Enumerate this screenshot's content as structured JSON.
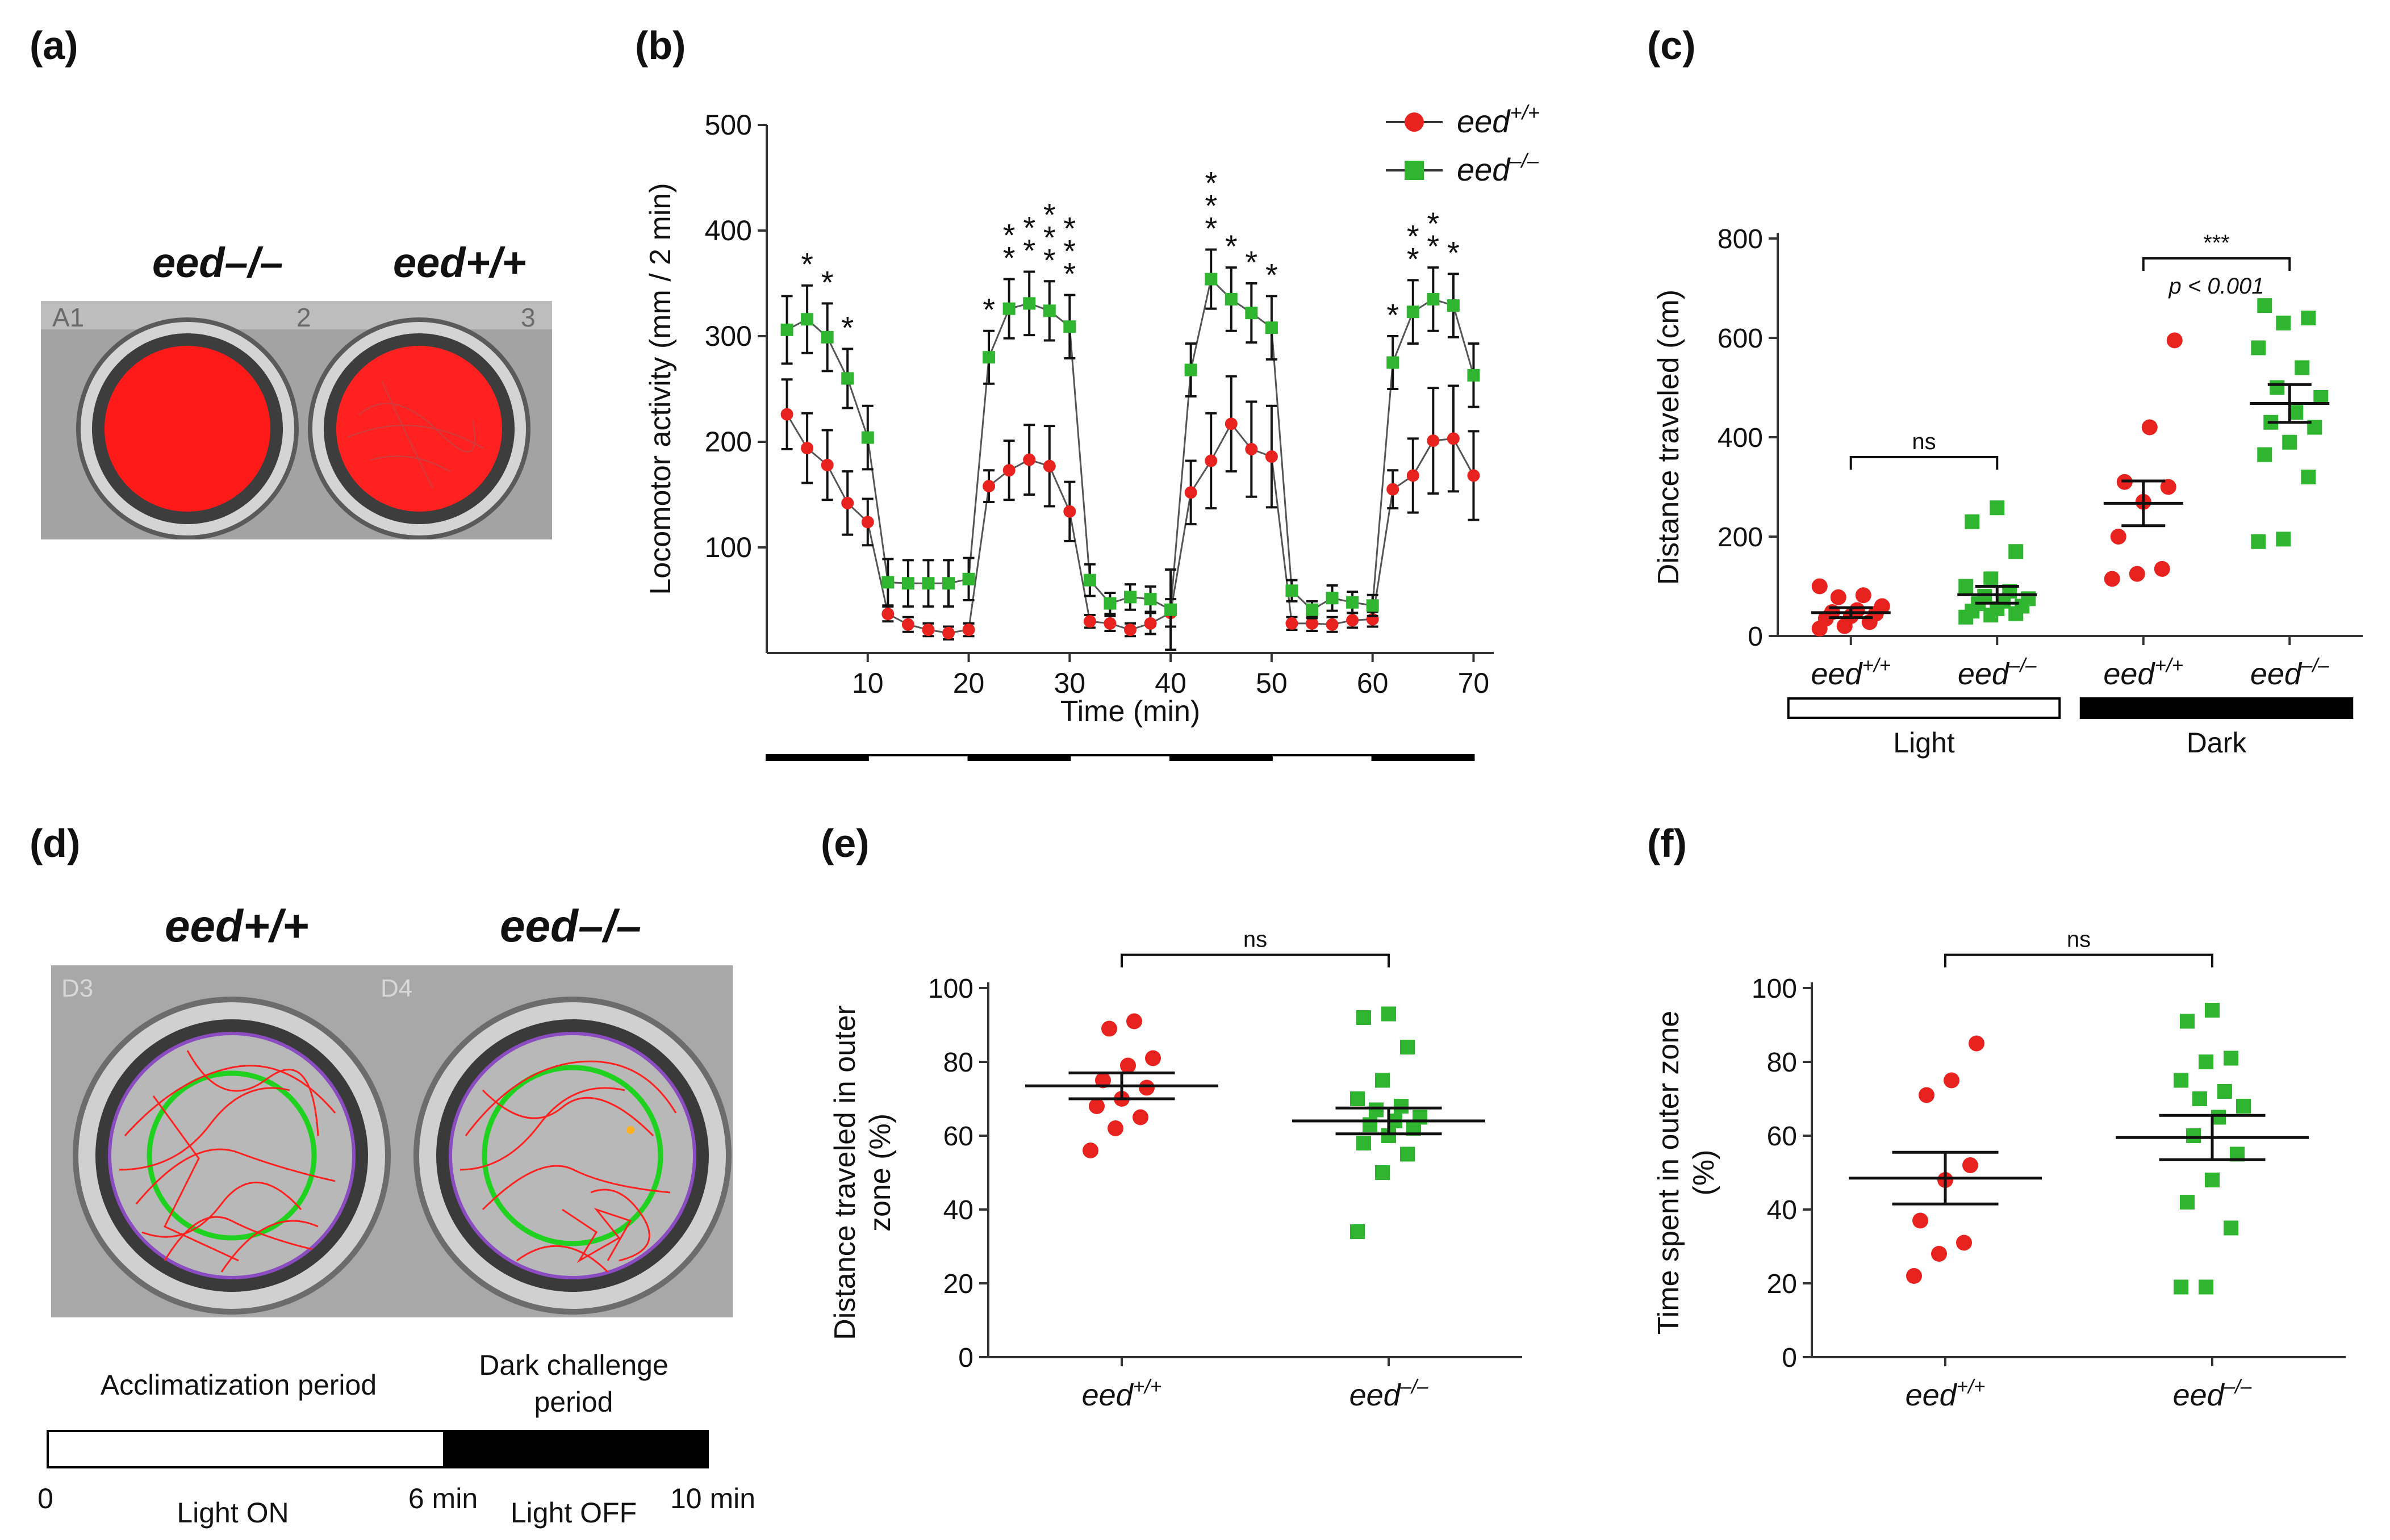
{
  "panels": {
    "a": {
      "label": "(a)",
      "genotype_left": "eed–/–",
      "genotype_right": "eed+/+",
      "well_marks": [
        "A1",
        "2",
        "3"
      ]
    },
    "b": {
      "label": "(b)"
    },
    "c": {
      "label": "(c)"
    },
    "d": {
      "label": "(d)",
      "genotype_left": "eed+/+",
      "genotype_right": "eed–/–",
      "well_marks": [
        "D3",
        "D4"
      ],
      "period_acclimatization": "Acclimatization period",
      "period_dark_line1": "Dark challenge",
      "period_dark_line2": "period",
      "tick_0": "0",
      "tick_6": "6 min",
      "tick_10": "10 min",
      "light_on": "Light ON",
      "light_off": "Light OFF"
    },
    "e": {
      "label": "(e)"
    },
    "f": {
      "label": "(f)"
    }
  },
  "chart_data": [
    {
      "id": "b",
      "type": "line",
      "xlabel": "Time (min)",
      "ylabel": "Locomotor activity (mm / 2 min)",
      "xlim": [
        0,
        72
      ],
      "ylim": [
        0,
        500
      ],
      "xticks": [
        10,
        20,
        30,
        40,
        50,
        60,
        70
      ],
      "yticks": [
        100,
        200,
        300,
        400,
        500
      ],
      "x": [
        2,
        4,
        6,
        8,
        10,
        12,
        14,
        16,
        18,
        20,
        22,
        24,
        26,
        28,
        30,
        32,
        34,
        36,
        38,
        40,
        42,
        44,
        46,
        48,
        50,
        52,
        54,
        56,
        58,
        60,
        62,
        64,
        66,
        68,
        70
      ],
      "series": [
        {
          "name": "eed+/+",
          "color": "#e8231f",
          "marker": "circle",
          "values": [
            226,
            194,
            178,
            142,
            124,
            37,
            27,
            22,
            19,
            22,
            158,
            173,
            183,
            177,
            134,
            30,
            28,
            22,
            28,
            38,
            152,
            182,
            217,
            193,
            186,
            28,
            28,
            27,
            31,
            32,
            155,
            168,
            201,
            203,
            168
          ],
          "errors": [
            33,
            33,
            33,
            30,
            22,
            7,
            7,
            6,
            6,
            6,
            15,
            28,
            33,
            38,
            28,
            6,
            7,
            6,
            10,
            13,
            30,
            45,
            45,
            45,
            48,
            6,
            7,
            7,
            7,
            7,
            18,
            35,
            50,
            50,
            42
          ]
        },
        {
          "name": "eed–/–",
          "color": "#2fb52f",
          "marker": "square",
          "values": [
            306,
            316,
            299,
            260,
            204,
            67,
            66,
            66,
            66,
            70,
            280,
            326,
            331,
            324,
            309,
            69,
            47,
            53,
            51,
            41,
            268,
            354,
            335,
            322,
            308,
            59,
            41,
            52,
            48,
            45,
            275,
            323,
            335,
            329,
            263
          ],
          "errors": [
            32,
            32,
            32,
            28,
            30,
            22,
            22,
            22,
            22,
            20,
            25,
            28,
            30,
            28,
            30,
            15,
            10,
            12,
            12,
            38,
            25,
            28,
            30,
            28,
            30,
            10,
            8,
            12,
            10,
            10,
            25,
            30,
            30,
            30,
            30
          ]
        }
      ],
      "significance": [
        {
          "x": 4,
          "stars": 1
        },
        {
          "x": 6,
          "stars": 1
        },
        {
          "x": 8,
          "stars": 1
        },
        {
          "x": 22,
          "stars": 1
        },
        {
          "x": 24,
          "stars": 2
        },
        {
          "x": 26,
          "stars": 2
        },
        {
          "x": 28,
          "stars": 3
        },
        {
          "x": 30,
          "stars": 3
        },
        {
          "x": 44,
          "stars": 3
        },
        {
          "x": 46,
          "stars": 1
        },
        {
          "x": 48,
          "stars": 1
        },
        {
          "x": 50,
          "stars": 1
        },
        {
          "x": 62,
          "stars": 1
        },
        {
          "x": 64,
          "stars": 2
        },
        {
          "x": 66,
          "stars": 2
        },
        {
          "x": 68,
          "stars": 1
        }
      ],
      "light_dark_bar": [
        {
          "from": 0,
          "to": 10,
          "state": "dark"
        },
        {
          "from": 10,
          "to": 20,
          "state": "light"
        },
        {
          "from": 20,
          "to": 30,
          "state": "dark"
        },
        {
          "from": 30,
          "to": 40,
          "state": "light"
        },
        {
          "from": 40,
          "to": 50,
          "state": "dark"
        },
        {
          "from": 50,
          "to": 60,
          "state": "light"
        },
        {
          "from": 60,
          "to": 70,
          "state": "dark"
        }
      ],
      "legend": [
        "eed+/+",
        "eed–/–"
      ],
      "legend_position": "top-right",
      "star": "*"
    },
    {
      "id": "c",
      "type": "scatter",
      "ylabel": "Distance traveled (cm)",
      "ylim": [
        0,
        800
      ],
      "yticks": [
        0,
        200,
        400,
        600,
        800
      ],
      "categories": [
        "eed+/+",
        "eed–/–",
        "eed+/+",
        "eed–/–"
      ],
      "groups": [
        {
          "name": "eed+/+",
          "condition": "Light",
          "color": "#e8231f",
          "marker": "circle",
          "mean": 47,
          "sem": 10,
          "values": [
            15,
            20,
            28,
            35,
            40,
            45,
            48,
            52,
            60,
            78,
            82,
            100
          ]
        },
        {
          "name": "eed–/–",
          "condition": "Light",
          "color": "#2fb52f",
          "marker": "square",
          "mean": 83,
          "sem": 17,
          "values": [
            38,
            42,
            45,
            50,
            55,
            60,
            65,
            70,
            75,
            80,
            90,
            100,
            115,
            170,
            230,
            258
          ]
        },
        {
          "name": "eed+/+",
          "condition": "Dark",
          "color": "#e8231f",
          "marker": "circle",
          "mean": 267,
          "sem": 45,
          "values": [
            115,
            125,
            135,
            200,
            270,
            300,
            310,
            420,
            595
          ]
        },
        {
          "name": "eed–/–",
          "condition": "Dark",
          "color": "#2fb52f",
          "marker": "square",
          "mean": 468,
          "sem": 38,
          "values": [
            190,
            195,
            320,
            365,
            390,
            420,
            430,
            450,
            480,
            500,
            540,
            580,
            630,
            640,
            665
          ]
        }
      ],
      "conditions": [
        {
          "name": "Light",
          "fill": "white"
        },
        {
          "name": "Dark",
          "fill": "black"
        }
      ],
      "comparisons": [
        {
          "groups": [
            0,
            1
          ],
          "label": "ns",
          "y": 360
        },
        {
          "groups": [
            2,
            3
          ],
          "label": "***",
          "sublabel": "p < 0.001",
          "y": 760
        }
      ]
    },
    {
      "id": "e",
      "type": "scatter",
      "ylabel_line1": "Distance traveled in outer",
      "ylabel_line2": "zone (%)",
      "ylim": [
        0,
        100
      ],
      "yticks": [
        0,
        20,
        40,
        60,
        80,
        100
      ],
      "categories": [
        "eed+/+",
        "eed–/–"
      ],
      "groups": [
        {
          "name": "eed+/+",
          "color": "#e8231f",
          "marker": "circle",
          "mean": 73.5,
          "sem": 3.5,
          "values": [
            56,
            62,
            65,
            68,
            70,
            73,
            75,
            79,
            81,
            89,
            91
          ]
        },
        {
          "name": "eed–/–",
          "color": "#2fb52f",
          "marker": "square",
          "mean": 64,
          "sem": 3.5,
          "values": [
            34,
            50,
            55,
            58,
            60,
            62,
            63,
            64,
            65,
            67,
            68,
            70,
            75,
            84,
            92,
            93
          ]
        }
      ],
      "comparisons": [
        {
          "groups": [
            0,
            1
          ],
          "label": "ns",
          "y": 109
        }
      ]
    },
    {
      "id": "f",
      "type": "scatter",
      "ylabel_line1": "Time spent in outer zone",
      "ylabel_line2": "(%)",
      "ylim": [
        0,
        100
      ],
      "yticks": [
        0,
        20,
        40,
        60,
        80,
        100
      ],
      "categories": [
        "eed+/+",
        "eed–/–"
      ],
      "groups": [
        {
          "name": "eed+/+",
          "color": "#e8231f",
          "marker": "circle",
          "mean": 48.5,
          "sem": 7,
          "values": [
            22,
            28,
            31,
            37,
            48,
            52,
            71,
            75,
            85
          ]
        },
        {
          "name": "eed–/–",
          "color": "#2fb52f",
          "marker": "square",
          "mean": 59.5,
          "sem": 6,
          "values": [
            19,
            19,
            35,
            42,
            48,
            55,
            60,
            65,
            68,
            70,
            72,
            75,
            80,
            81,
            91,
            94
          ]
        }
      ],
      "comparisons": [
        {
          "groups": [
            0,
            1
          ],
          "label": "ns",
          "y": 109
        }
      ]
    }
  ]
}
